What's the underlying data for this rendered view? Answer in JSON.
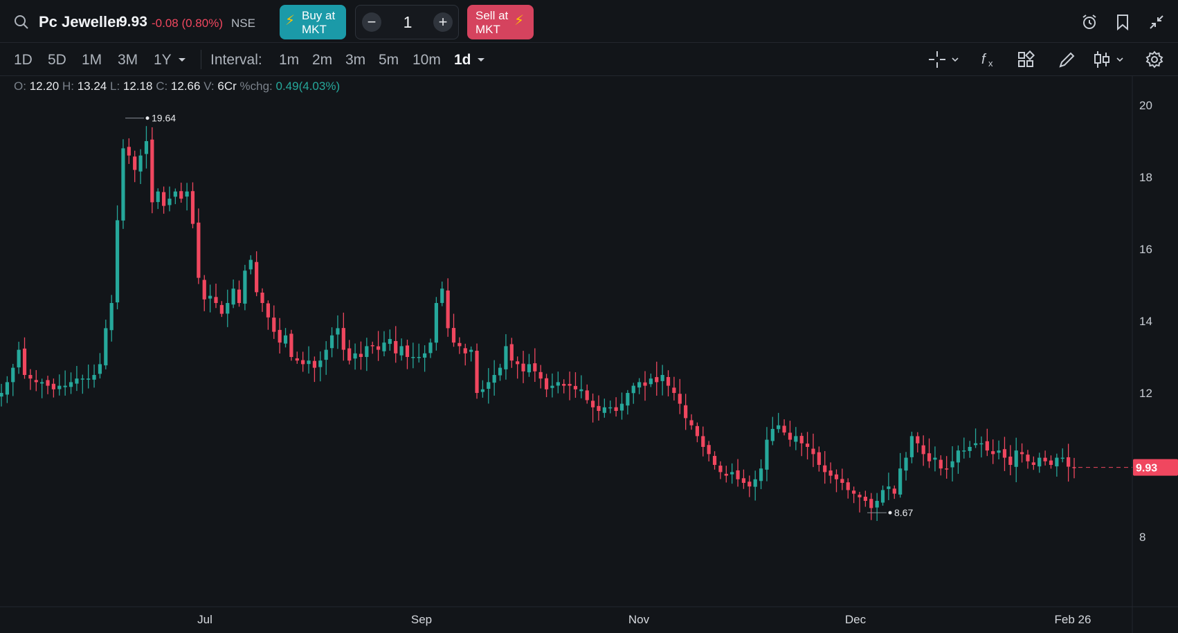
{
  "header": {
    "symbol": "Pc Jeweller",
    "ltp": "9.93",
    "change": "-0.08 (0.80%)",
    "exchange": "NSE",
    "buy_line1": "Buy at",
    "buy_line2": "MKT",
    "sell_line1": "Sell at",
    "sell_line2": "MKT",
    "qty_minus": "−",
    "qty_value": "1",
    "qty_plus": "+"
  },
  "toolbar": {
    "ranges": [
      "1D",
      "5D",
      "1M",
      "3M",
      "1Y"
    ],
    "interval_label": "Interval:",
    "intervals": [
      "1m",
      "2m",
      "3m",
      "5m",
      "10m",
      "1d"
    ],
    "active_interval": "1d"
  },
  "ohlc": {
    "o_label": "O:",
    "o": "12.20",
    "h_label": "H:",
    "h": "13.24",
    "l_label": "L:",
    "l": "12.18",
    "c_label": "C:",
    "c": "12.66",
    "v_label": "V:",
    "v": "6Cr",
    "chg_label": "%chg:",
    "chg": "0.49(4.03%)"
  },
  "colors": {
    "up": "#26a89b",
    "down": "#f0475f",
    "bg": "#121519",
    "buy": "#1b9aa8",
    "sell": "#d5435e"
  },
  "chart_data": {
    "type": "candlestick",
    "price_axis_ticks": [
      "20",
      "18",
      "16",
      "14",
      "12",
      "8"
    ],
    "time_axis_labels": [
      "Jul",
      "Sep",
      "Nov",
      "Dec",
      "Feb 26"
    ],
    "ylim": [
      7.5,
      20.5
    ],
    "last_price_label": "9.93",
    "last_price": 9.93,
    "high_marker": {
      "label": "19.64",
      "value": 19.64
    },
    "low_marker": {
      "label": "8.67",
      "value": 8.67
    },
    "closes": [
      12.0,
      12.3,
      12.7,
      13.2,
      12.5,
      12.4,
      12.3,
      12.3,
      12.2,
      12.1,
      12.2,
      12.2,
      12.3,
      12.4,
      12.4,
      12.4,
      12.5,
      12.8,
      13.8,
      14.5,
      16.8,
      18.8,
      18.6,
      18.2,
      18.6,
      19.0,
      17.3,
      17.6,
      17.2,
      17.4,
      17.6,
      17.4,
      17.6,
      16.7,
      15.2,
      14.6,
      14.7,
      14.5,
      14.2,
      14.5,
      14.9,
      14.5,
      15.4,
      15.7,
      14.8,
      14.5,
      14.1,
      13.7,
      13.4,
      13.6,
      13.0,
      12.9,
      12.8,
      12.9,
      12.7,
      12.9,
      13.2,
      13.6,
      13.8,
      13.2,
      12.9,
      13.1,
      13.0,
      13.3,
      13.3,
      13.2,
      13.4,
      13.5,
      13.1,
      13.3,
      13.0,
      13.0,
      13.0,
      13.1,
      13.4,
      14.5,
      14.9,
      13.8,
      13.4,
      13.3,
      13.1,
      13.2,
      12.0,
      12.1,
      12.3,
      12.5,
      12.7,
      13.3,
      12.9,
      12.8,
      12.6,
      12.8,
      12.6,
      12.4,
      12.1,
      12.2,
      12.3,
      12.2,
      12.2,
      12.1,
      12.1,
      11.8,
      11.6,
      11.5,
      11.6,
      11.6,
      11.5,
      11.7,
      12.0,
      12.2,
      12.3,
      12.2,
      12.4,
      12.3,
      12.5,
      12.2,
      12.0,
      11.7,
      11.3,
      11.1,
      10.8,
      10.5,
      10.3,
      10.0,
      9.8,
      9.7,
      9.8,
      9.6,
      9.5,
      9.4,
      9.6,
      9.9,
      10.7,
      11.0,
      11.1,
      10.9,
      10.7,
      10.8,
      10.6,
      10.5,
      10.3,
      10.0,
      9.8,
      9.7,
      9.6,
      9.5,
      9.3,
      9.2,
      9.1,
      9.0,
      8.8,
      9.0,
      9.3,
      9.4,
      9.2,
      9.9,
      10.2,
      10.8,
      10.6,
      10.3,
      10.1,
      10.2,
      9.9,
      9.9,
      10.1,
      10.4,
      10.4,
      10.5,
      10.6,
      10.6,
      10.4,
      10.3,
      10.4,
      10.2,
      10.0,
      10.4,
      10.3,
      10.1,
      10.0,
      10.2,
      10.1,
      10.0,
      10.2,
      10.2,
      9.95,
      9.93
    ]
  }
}
